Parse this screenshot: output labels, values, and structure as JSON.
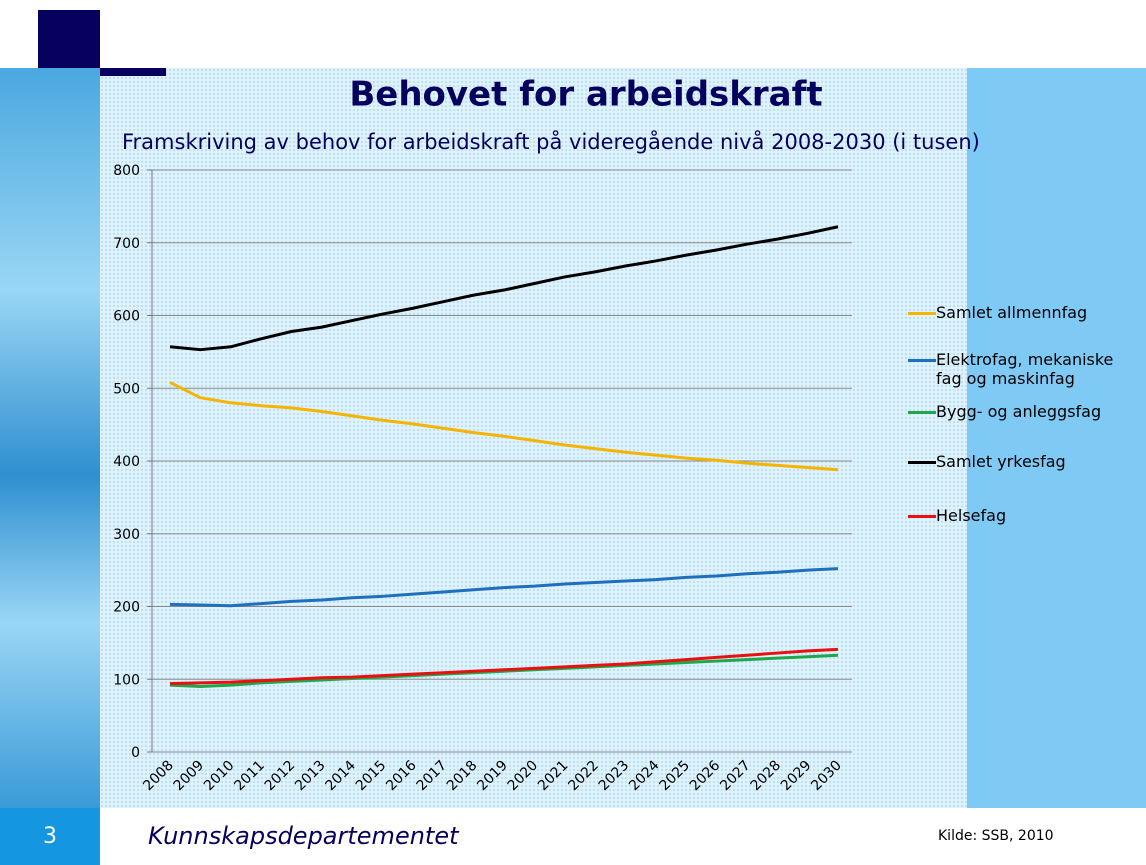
{
  "chart_data": {
    "type": "line",
    "title": "Behovet for arbeidskraft",
    "subtitle": "Framskriving av behov for arbeidskraft på videregående nivå 2008-2030 (i tusen)",
    "categories": [
      "2008",
      "2009",
      "2010",
      "2011",
      "2012",
      "2013",
      "2014",
      "2015",
      "2016",
      "2017",
      "2018",
      "2019",
      "2020",
      "2021",
      "2022",
      "2023",
      "2024",
      "2025",
      "2026",
      "2027",
      "2028",
      "2029",
      "2030"
    ],
    "series": [
      {
        "name": "Samlet allmennfag",
        "color": "#f5b400",
        "values": [
          508,
          487,
          480,
          476,
          473,
          468,
          462,
          456,
          451,
          445,
          439,
          434,
          428,
          422,
          417,
          412,
          408,
          404,
          401,
          397,
          394,
          391,
          388
        ]
      },
      {
        "name": "Elektrofag, mekaniske fag og maskinfag",
        "color": "#1f6fbf",
        "values": [
          203,
          202,
          201,
          204,
          207,
          209,
          212,
          214,
          217,
          220,
          223,
          226,
          228,
          231,
          233,
          235,
          237,
          240,
          242,
          245,
          247,
          250,
          252
        ]
      },
      {
        "name": "Bygg- og anleggsfag",
        "color": "#1ea84a",
        "values": [
          92,
          90,
          92,
          95,
          97,
          99,
          101,
          103,
          105,
          107,
          109,
          111,
          113,
          115,
          117,
          119,
          121,
          123,
          125,
          127,
          129,
          131,
          133
        ]
      },
      {
        "name": "Samlet yrkesfag",
        "color": "#000000",
        "values": [
          557,
          553,
          557,
          568,
          578,
          584,
          593,
          602,
          610,
          619,
          628,
          635,
          644,
          653,
          660,
          668,
          675,
          683,
          690,
          698,
          705,
          713,
          722
        ]
      },
      {
        "name": "Helsefag",
        "color": "#e81010",
        "values": [
          94,
          95,
          96,
          98,
          100,
          102,
          103,
          105,
          107,
          109,
          111,
          113,
          115,
          117,
          119,
          121,
          124,
          127,
          130,
          133,
          136,
          139,
          141
        ]
      }
    ],
    "ylim": [
      0,
      800
    ],
    "yticks": [
      0,
      100,
      200,
      300,
      400,
      500,
      600,
      700,
      800
    ],
    "grid": true,
    "legend": "right"
  },
  "slide": {
    "number": "3",
    "footer": "Kunnskapsdepartementet",
    "source": "Kilde: SSB, 2010"
  }
}
